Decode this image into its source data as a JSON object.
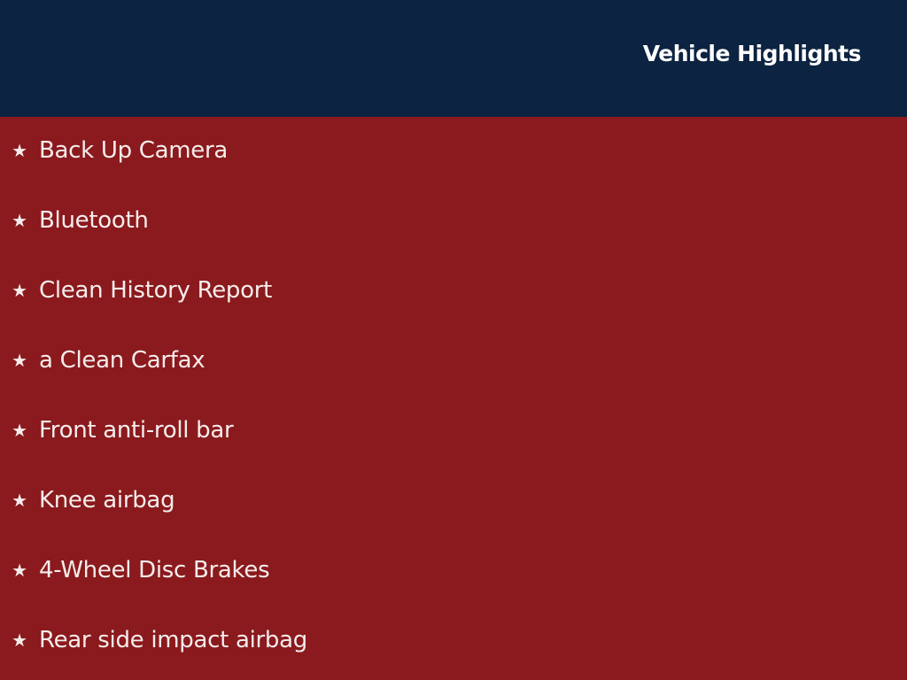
{
  "header": {
    "title": "Vehicle Highlights"
  },
  "colors": {
    "header_bg": "#0c2341",
    "body_bg": "#8a1a1d",
    "text": "#ffffff"
  },
  "highlights": {
    "icon": "star-icon",
    "items": [
      {
        "label": "Back Up Camera"
      },
      {
        "label": "Bluetooth"
      },
      {
        "label": "Clean History Report"
      },
      {
        "label": "a Clean Carfax"
      },
      {
        "label": "Front anti-roll bar"
      },
      {
        "label": "Knee airbag"
      },
      {
        "label": "4-Wheel Disc Brakes"
      },
      {
        "label": "Rear side impact airbag"
      }
    ]
  }
}
